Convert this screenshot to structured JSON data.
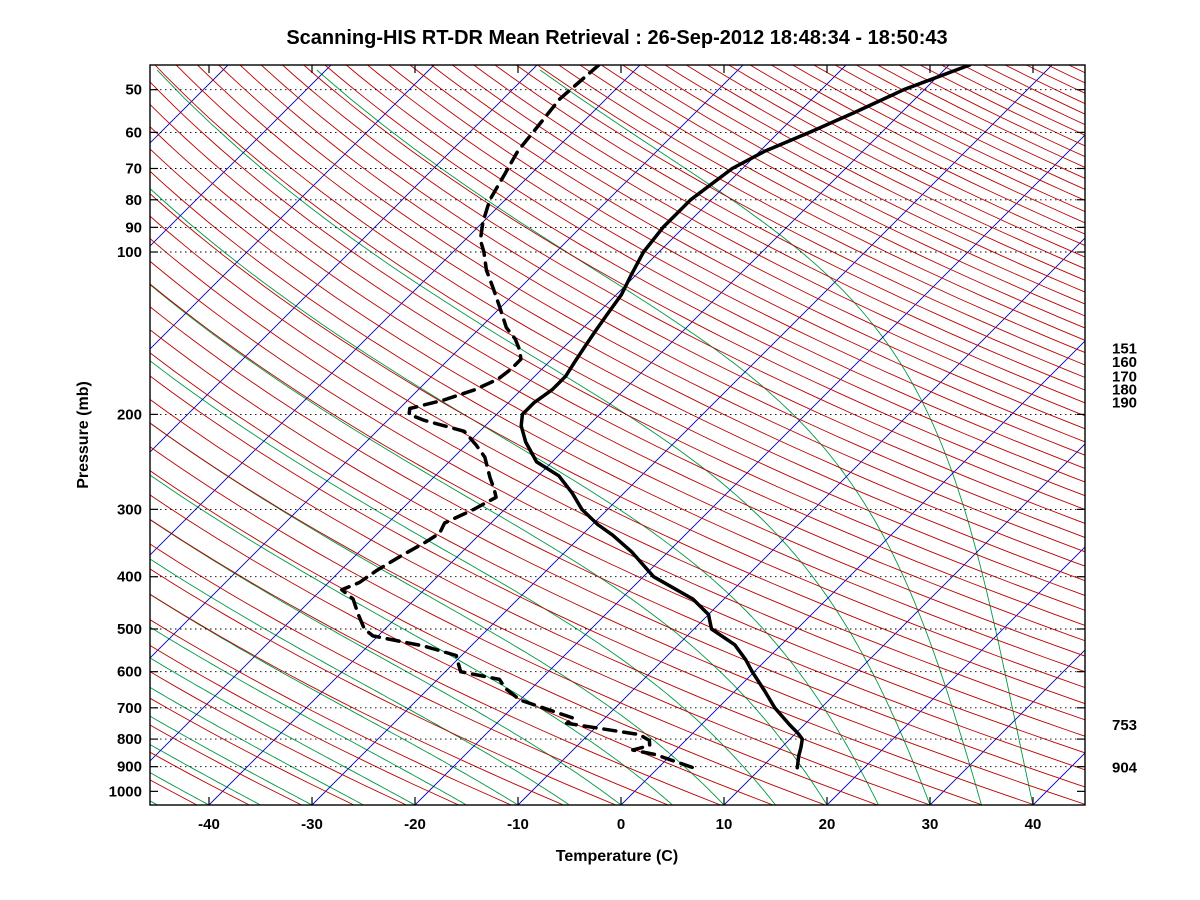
{
  "chart_data": {
    "type": "line",
    "title": "Scanning-HIS RT-DR Mean Retrieval : 26-Sep-2012 18:48:34 - 18:50:43",
    "xlabel": "Temperature (C)",
    "ylabel": "Pressure (mb)",
    "x_ticks": [
      -40,
      -30,
      -20,
      -10,
      0,
      10,
      20,
      30,
      40
    ],
    "y_ticks": [
      50,
      60,
      70,
      80,
      90,
      100,
      200,
      300,
      400,
      500,
      600,
      700,
      800,
      900,
      1000
    ],
    "grid_pressures": [
      50,
      60,
      70,
      80,
      90,
      100,
      200,
      300,
      400,
      500,
      600,
      700,
      800,
      900
    ],
    "pressure_range": [
      45,
      1060
    ],
    "y_scale": "log",
    "skew_deg": 45,
    "grid": "dotted-horizontal",
    "legend_position": "none",
    "colors": {
      "isotherm": "#0000bb",
      "dry_adiabat": "#bb0000",
      "moist_adiabat": "#009944",
      "profile": "#000000",
      "grid": "#000000"
    },
    "background_lines": {
      "isotherms": {
        "min": -120,
        "max": 40,
        "step": 10
      },
      "dry_adiabats": {
        "theta_min_c": -50,
        "theta_max_c": 330,
        "step_c": 5
      },
      "moist_adiabats": {
        "t_surface_min": -45,
        "t_surface_max": 40,
        "step": 5
      }
    },
    "right_labels": [
      {
        "label": "151",
        "pressure": 151
      },
      {
        "label": "160",
        "pressure": 160
      },
      {
        "label": "170",
        "pressure": 170
      },
      {
        "label": "180",
        "pressure": 180
      },
      {
        "label": "190",
        "pressure": 190
      },
      {
        "label": "753",
        "pressure": 753
      },
      {
        "label": "904",
        "pressure": 904
      }
    ],
    "series": [
      {
        "name": "temperature",
        "line_style": "solid",
        "color": "#000000",
        "width": 3.5,
        "points_p_t": [
          [
            45,
            -38
          ],
          [
            50,
            -42
          ],
          [
            55,
            -44.5
          ],
          [
            60,
            -47
          ],
          [
            65,
            -49.5
          ],
          [
            70,
            -51
          ],
          [
            80,
            -52
          ],
          [
            90,
            -52
          ],
          [
            100,
            -51.5
          ],
          [
            110,
            -50.5
          ],
          [
            120,
            -49.5
          ],
          [
            130,
            -49
          ],
          [
            140,
            -48.5
          ],
          [
            150,
            -48
          ],
          [
            160,
            -47.5
          ],
          [
            170,
            -47
          ],
          [
            180,
            -47
          ],
          [
            190,
            -47.5
          ],
          [
            200,
            -47.5
          ],
          [
            210,
            -46.5
          ],
          [
            225,
            -44.5
          ],
          [
            245,
            -41.5
          ],
          [
            260,
            -38
          ],
          [
            280,
            -35
          ],
          [
            300,
            -32.5
          ],
          [
            320,
            -29.5
          ],
          [
            335,
            -27
          ],
          [
            360,
            -23.5
          ],
          [
            400,
            -19
          ],
          [
            440,
            -13
          ],
          [
            470,
            -10
          ],
          [
            500,
            -8.3
          ],
          [
            535,
            -4.5
          ],
          [
            570,
            -2
          ],
          [
            600,
            -0.2
          ],
          [
            650,
            2.8
          ],
          [
            700,
            5.5
          ],
          [
            753,
            8.6
          ],
          [
            780,
            10.2
          ],
          [
            800,
            11.2
          ],
          [
            830,
            11.9
          ],
          [
            860,
            12.5
          ],
          [
            904,
            13.5
          ]
        ]
      },
      {
        "name": "dewpoint",
        "line_style": "dashed",
        "color": "#000000",
        "width": 3.5,
        "points_p_t": [
          [
            45,
            -74
          ],
          [
            52,
            -74.5
          ],
          [
            58,
            -74
          ],
          [
            65,
            -73.5
          ],
          [
            72,
            -72.5
          ],
          [
            80,
            -71.5
          ],
          [
            88,
            -70
          ],
          [
            95,
            -68.5
          ],
          [
            100,
            -67
          ],
          [
            108,
            -65
          ],
          [
            117,
            -62.5
          ],
          [
            127,
            -60
          ],
          [
            138,
            -57.5
          ],
          [
            145,
            -55.5
          ],
          [
            152,
            -54
          ],
          [
            158,
            -53
          ],
          [
            165,
            -53
          ],
          [
            172,
            -53.3
          ],
          [
            180,
            -54.5
          ],
          [
            188,
            -56.5
          ],
          [
            195,
            -59
          ],
          [
            200,
            -58.5
          ],
          [
            205,
            -56.5
          ],
          [
            215,
            -51.5
          ],
          [
            228,
            -49
          ],
          [
            240,
            -47
          ],
          [
            262,
            -44.5
          ],
          [
            275,
            -43
          ],
          [
            285,
            -42
          ],
          [
            300,
            -43
          ],
          [
            318,
            -44.5
          ],
          [
            332,
            -44
          ],
          [
            345,
            -44.5
          ],
          [
            365,
            -45.5
          ],
          [
            390,
            -46.5
          ],
          [
            410,
            -47
          ],
          [
            423,
            -48
          ],
          [
            440,
            -46
          ],
          [
            470,
            -44
          ],
          [
            500,
            -42
          ],
          [
            515,
            -40.5
          ],
          [
            538,
            -34.5
          ],
          [
            560,
            -30.5
          ],
          [
            580,
            -29.5
          ],
          [
            600,
            -28.5
          ],
          [
            620,
            -24
          ],
          [
            645,
            -22.5
          ],
          [
            677,
            -20
          ],
          [
            700,
            -17
          ],
          [
            720,
            -14.5
          ],
          [
            732,
            -13
          ],
          [
            748,
            -13.2
          ],
          [
            762,
            -10
          ],
          [
            785,
            -5
          ],
          [
            805,
            -3.5
          ],
          [
            822,
            -3
          ],
          [
            838,
            -4.2
          ],
          [
            855,
            -1.5
          ],
          [
            880,
            1
          ],
          [
            905,
            3.5
          ]
        ]
      }
    ]
  }
}
